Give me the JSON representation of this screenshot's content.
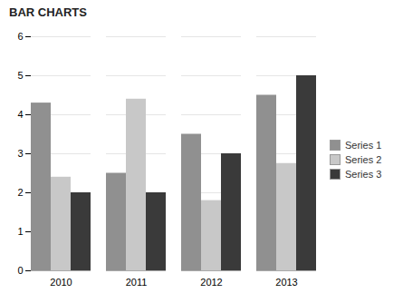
{
  "chart_data": {
    "type": "bar",
    "title": "BAR CHARTS",
    "categories": [
      "2010",
      "2011",
      "2012",
      "2013"
    ],
    "series": [
      {
        "name": "Series 1",
        "color": "#909090",
        "values": [
          4.3,
          2.5,
          3.5,
          4.5
        ]
      },
      {
        "name": "Series 2",
        "color": "#c8c8c8",
        "values": [
          2.4,
          4.4,
          1.8,
          2.75
        ]
      },
      {
        "name": "Series 3",
        "color": "#3a3a3a",
        "values": [
          2.0,
          2.0,
          3.0,
          5.0
        ]
      }
    ],
    "ylim": [
      0,
      6
    ],
    "yticks": [
      0,
      1,
      2,
      3,
      4,
      5,
      6
    ],
    "grid": true,
    "legend": "right"
  }
}
